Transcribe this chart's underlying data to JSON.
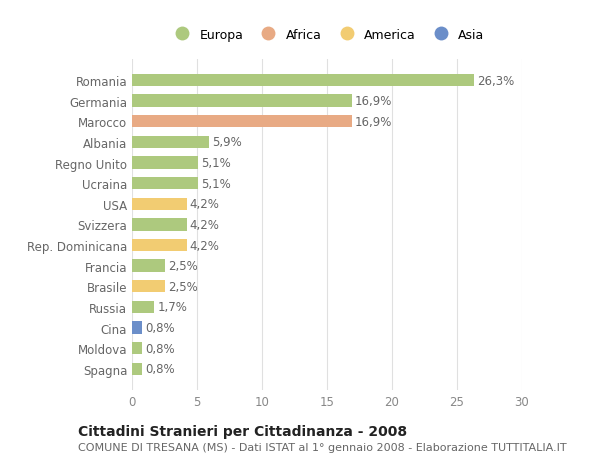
{
  "categories": [
    "Romania",
    "Germania",
    "Marocco",
    "Albania",
    "Regno Unito",
    "Ucraina",
    "USA",
    "Svizzera",
    "Rep. Dominicana",
    "Francia",
    "Brasile",
    "Russia",
    "Cina",
    "Moldova",
    "Spagna"
  ],
  "values": [
    26.3,
    16.9,
    16.9,
    5.9,
    5.1,
    5.1,
    4.2,
    4.2,
    4.2,
    2.5,
    2.5,
    1.7,
    0.8,
    0.8,
    0.8
  ],
  "labels": [
    "26,3%",
    "16,9%",
    "16,9%",
    "5,9%",
    "5,1%",
    "5,1%",
    "4,2%",
    "4,2%",
    "4,2%",
    "2,5%",
    "2,5%",
    "1,7%",
    "0,8%",
    "0,8%",
    "0,8%"
  ],
  "continents": [
    "Europa",
    "Europa",
    "Africa",
    "Europa",
    "Europa",
    "Europa",
    "America",
    "Europa",
    "America",
    "Europa",
    "America",
    "Europa",
    "Asia",
    "Europa",
    "Europa"
  ],
  "colors": {
    "Europa": "#adc97e",
    "Africa": "#e8aa84",
    "America": "#f2cc72",
    "Asia": "#6b8ec9"
  },
  "title": "Cittadini Stranieri per Cittadinanza - 2008",
  "subtitle": "COMUNE DI TRESANA (MS) - Dati ISTAT al 1° gennaio 2008 - Elaborazione TUTTITALIA.IT",
  "xlim": [
    0,
    30
  ],
  "xticks": [
    0,
    5,
    10,
    15,
    20,
    25,
    30
  ],
  "background_color": "#ffffff",
  "grid_color": "#e0e0e0",
  "bar_height": 0.6,
  "label_fontsize": 8.5,
  "ytick_fontsize": 8.5,
  "xtick_fontsize": 8.5,
  "title_fontsize": 10,
  "subtitle_fontsize": 8
}
